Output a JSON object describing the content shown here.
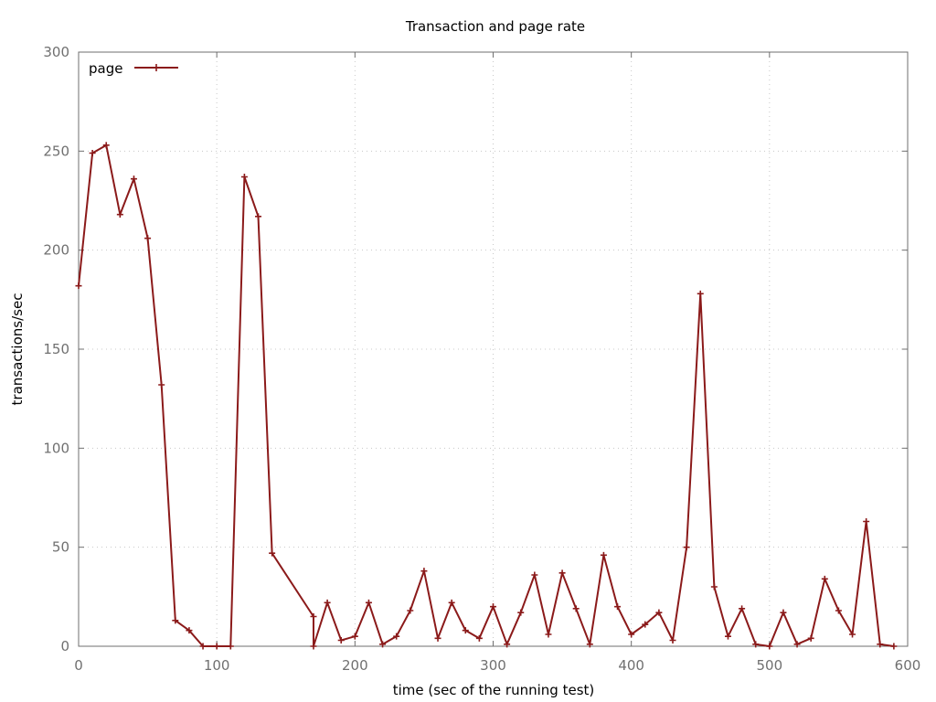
{
  "chart_data": {
    "type": "line",
    "title": "Transaction and page rate",
    "xlabel": "time (sec of the running test)",
    "ylabel": "transactions/sec",
    "xlim": [
      0,
      600
    ],
    "ylim": [
      0,
      300
    ],
    "xticks": [
      0,
      100,
      200,
      300,
      400,
      500,
      600
    ],
    "yticks": [
      0,
      50,
      100,
      150,
      200,
      250,
      300
    ],
    "grid": true,
    "legend_position": "top-left",
    "series": [
      {
        "name": "page",
        "color": "#8B1A1A",
        "marker": "plus",
        "points": [
          [
            0,
            182
          ],
          [
            10,
            249
          ],
          [
            20,
            253
          ],
          [
            30,
            218
          ],
          [
            40,
            236
          ],
          [
            50,
            206
          ],
          [
            60,
            132
          ],
          [
            70,
            13
          ],
          [
            80,
            8
          ],
          [
            90,
            0
          ],
          [
            100,
            0
          ],
          [
            110,
            0
          ],
          [
            120,
            237
          ],
          [
            130,
            217
          ],
          [
            140,
            47
          ],
          [
            170,
            15
          ],
          [
            170,
            0
          ],
          [
            180,
            22
          ],
          [
            190,
            3
          ],
          [
            200,
            5
          ],
          [
            210,
            22
          ],
          [
            220,
            1
          ],
          [
            230,
            5
          ],
          [
            240,
            18
          ],
          [
            250,
            38
          ],
          [
            260,
            4
          ],
          [
            270,
            22
          ],
          [
            280,
            8
          ],
          [
            290,
            4
          ],
          [
            300,
            20
          ],
          [
            310,
            1
          ],
          [
            320,
            17
          ],
          [
            330,
            36
          ],
          [
            340,
            6
          ],
          [
            350,
            37
          ],
          [
            360,
            19
          ],
          [
            370,
            1
          ],
          [
            380,
            46
          ],
          [
            390,
            20
          ],
          [
            400,
            6
          ],
          [
            410,
            11
          ],
          [
            420,
            17
          ],
          [
            430,
            3
          ],
          [
            440,
            50
          ],
          [
            450,
            178
          ],
          [
            460,
            30
          ],
          [
            470,
            5
          ],
          [
            480,
            19
          ],
          [
            490,
            1
          ],
          [
            500,
            0
          ],
          [
            510,
            17
          ],
          [
            520,
            1
          ],
          [
            530,
            4
          ],
          [
            540,
            34
          ],
          [
            550,
            18
          ],
          [
            560,
            6
          ],
          [
            570,
            63
          ],
          [
            580,
            1
          ],
          [
            590,
            0
          ]
        ]
      }
    ]
  }
}
